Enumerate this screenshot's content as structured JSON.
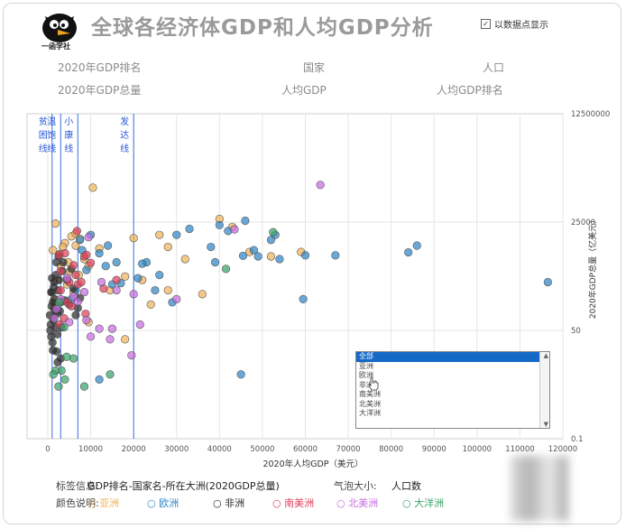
{
  "title": "全球各经济体GDP和人均GDP分析",
  "show_points_label": "以数据点显示",
  "show_points_checked": "✓",
  "logo_text": "一函学社",
  "info_labels": {
    "rank": "2020年GDP排名",
    "country": "国家",
    "population": "人口",
    "total": "2020年GDP总量",
    "per_capita": "人均GDP",
    "per_capita_rank": "人均GDP排名"
  },
  "footer": {
    "tag_label": "标签信息:",
    "tag_value": "GDP排名-国家名-所在大洲(2020GDP总量)",
    "bubble_label": "气泡大小:",
    "bubble_value": "人口数",
    "color_label": "颜色说明:"
  },
  "dropdown": {
    "options": [
      "全部",
      "亚洲",
      "欧洲",
      "非洲",
      "南美洲",
      "北美洲",
      "大洋洲"
    ],
    "selected": 0
  },
  "colors": {
    "亚洲": "#f0b35a",
    "欧洲": "#2f86c6",
    "非洲": "#2b2b2b",
    "南美洲": "#e0405c",
    "北美洲": "#c86ce0",
    "大洋洲": "#3aa36a"
  },
  "chart_data": {
    "type": "scatter",
    "xlabel": "2020年人均GDP（美元）",
    "ylabel": "2020年GDP总量（亿美元）",
    "x_ticks": [
      "0",
      "10000",
      "20000",
      "30000",
      "40000",
      "50000",
      "60000",
      "70000",
      "80000",
      "90000",
      "100000",
      "110000",
      "120000"
    ],
    "xlim": [
      0,
      120000
    ],
    "y_scale": "log",
    "y_ticks": [
      0.1,
      50,
      25000,
      12500000
    ],
    "y_tick_labels": [
      "0.1",
      "50",
      "25000",
      "12500000"
    ],
    "ylim": [
      0.1,
      12500000
    ],
    "lines": [
      {
        "label": "贫困线",
        "x": 1000
      },
      {
        "label": "温饱线",
        "x": 3000
      },
      {
        "label": "小康线",
        "x": 7000
      },
      {
        "label": "发达线",
        "x": 20000
      }
    ],
    "series": [
      {
        "name": "亚洲",
        "points": [
          [
            10500,
            180000
          ],
          [
            1800,
            23000
          ],
          [
            4000,
            7500
          ],
          [
            5500,
            11000
          ],
          [
            6500,
            13000
          ],
          [
            7500,
            9500
          ],
          [
            3500,
            6000
          ],
          [
            2800,
            4000
          ],
          [
            8500,
            3000
          ],
          [
            12000,
            5500
          ],
          [
            9500,
            2000
          ],
          [
            20000,
            10000
          ],
          [
            26000,
            12000
          ],
          [
            28000,
            6000
          ],
          [
            32000,
            3000
          ],
          [
            40000,
            30000
          ],
          [
            43000,
            19000
          ],
          [
            47000,
            4500
          ],
          [
            52000,
            3500
          ],
          [
            59000,
            4500
          ],
          [
            22000,
            900
          ],
          [
            28000,
            500
          ],
          [
            36000,
            400
          ],
          [
            18000,
            1100
          ],
          [
            1200,
            5000
          ],
          [
            2200,
            900
          ],
          [
            3000,
            2000
          ],
          [
            4500,
            700
          ],
          [
            6000,
            450
          ],
          [
            9500,
            80
          ],
          [
            1500,
            300
          ],
          [
            14500,
            500
          ],
          [
            18000,
            30
          ],
          [
            24000,
            220
          ],
          [
            6500,
            6500
          ],
          [
            4800,
            2500
          ],
          [
            5200,
            1500
          ],
          [
            7200,
            1200
          ]
        ]
      },
      {
        "name": "欧洲",
        "points": [
          [
            116500,
            800
          ],
          [
            86000,
            6500
          ],
          [
            84000,
            4400
          ],
          [
            67000,
            3700
          ],
          [
            60000,
            3700
          ],
          [
            59500,
            300
          ],
          [
            46000,
            27000
          ],
          [
            45500,
            3600
          ],
          [
            40000,
            21000
          ],
          [
            42000,
            15000
          ],
          [
            38000,
            6000
          ],
          [
            48000,
            5000
          ],
          [
            49000,
            3500
          ],
          [
            52000,
            9000
          ],
          [
            53000,
            12000
          ],
          [
            54000,
            3000
          ],
          [
            39000,
            2500
          ],
          [
            33000,
            17000
          ],
          [
            30000,
            12000
          ],
          [
            23000,
            2500
          ],
          [
            26000,
            1200
          ],
          [
            25000,
            500
          ],
          [
            22000,
            2300
          ],
          [
            16000,
            2500
          ],
          [
            15000,
            700
          ],
          [
            17000,
            750
          ],
          [
            14000,
            6500
          ],
          [
            12000,
            4200
          ],
          [
            10000,
            12000
          ],
          [
            9000,
            1600
          ],
          [
            8000,
            5000
          ],
          [
            7500,
            9000
          ],
          [
            13500,
            2000
          ],
          [
            21000,
            1000
          ],
          [
            6500,
            500
          ],
          [
            5500,
            300
          ],
          [
            45000,
            4
          ],
          [
            12000,
            3
          ],
          [
            29000,
            250
          ]
        ]
      },
      {
        "name": "非洲",
        "points": [
          [
            500,
            120
          ],
          [
            600,
            50
          ],
          [
            700,
            70
          ],
          [
            800,
            35
          ],
          [
            900,
            200
          ],
          [
            1000,
            450
          ],
          [
            1100,
            25
          ],
          [
            1200,
            16
          ],
          [
            1300,
            90
          ],
          [
            1400,
            600
          ],
          [
            1500,
            800
          ],
          [
            1600,
            300
          ],
          [
            1700,
            150
          ],
          [
            1800,
            60
          ],
          [
            1900,
            1200
          ],
          [
            2000,
            2500
          ],
          [
            2100,
            130
          ],
          [
            2200,
            40
          ],
          [
            2300,
            8
          ],
          [
            2400,
            500
          ],
          [
            2500,
            3500
          ],
          [
            2600,
            900
          ],
          [
            2800,
            150
          ],
          [
            3000,
            250
          ],
          [
            3200,
            60
          ],
          [
            3400,
            1500
          ],
          [
            3600,
            2500
          ],
          [
            4000,
            280
          ],
          [
            4500,
            900
          ],
          [
            5000,
            220
          ],
          [
            5500,
            1700
          ],
          [
            6000,
            550
          ],
          [
            6500,
            120
          ],
          [
            7000,
            180
          ],
          [
            7500,
            320
          ],
          [
            1000,
            1000
          ],
          [
            1500,
            180
          ],
          [
            2000,
            15
          ],
          [
            3000,
            10
          ],
          [
            800,
            450
          ],
          [
            1200,
            250
          ]
        ]
      },
      {
        "name": "南美洲",
        "points": [
          [
            6800,
            15000
          ],
          [
            8500,
            3500
          ],
          [
            9000,
            3800
          ],
          [
            10000,
            2400
          ],
          [
            6000,
            2100
          ],
          [
            5000,
            800
          ],
          [
            3000,
            500
          ],
          [
            3800,
            100
          ],
          [
            4500,
            250
          ],
          [
            2600,
            3800
          ],
          [
            13000,
            550
          ],
          [
            16000,
            900
          ],
          [
            6500,
            1200
          ],
          [
            7000,
            700
          ],
          [
            5500,
            200
          ],
          [
            2800,
            70
          ],
          [
            4000,
            4200
          ],
          [
            7800,
            800
          ],
          [
            8800,
            130
          ],
          [
            3000,
            1500
          ]
        ]
      },
      {
        "name": "北美洲",
        "points": [
          [
            63500,
            210000
          ],
          [
            43500,
            16500
          ],
          [
            9500,
            10500
          ],
          [
            4500,
            1000
          ],
          [
            6000,
            350
          ],
          [
            7000,
            260
          ],
          [
            9000,
            90
          ],
          [
            10000,
            35
          ],
          [
            12000,
            55
          ],
          [
            15000,
            55
          ],
          [
            19500,
            12
          ],
          [
            21500,
            70
          ],
          [
            16000,
            500
          ],
          [
            12500,
            800
          ],
          [
            3000,
            300
          ],
          [
            2000,
            170
          ],
          [
            1500,
            100
          ],
          [
            8500,
            450
          ],
          [
            5000,
            80
          ],
          [
            30000,
            300
          ],
          [
            20000,
            400
          ],
          [
            14500,
            30
          ]
        ]
      },
      {
        "name": "大洋洲",
        "points": [
          [
            52500,
            14000
          ],
          [
            41500,
            1700
          ],
          [
            2700,
            250
          ],
          [
            3800,
            60
          ],
          [
            4400,
            11
          ],
          [
            3200,
            5
          ],
          [
            1800,
            5
          ],
          [
            1300,
            4
          ],
          [
            6000,
            10
          ],
          [
            8500,
            2
          ],
          [
            14500,
            4
          ],
          [
            2500,
            2
          ],
          [
            4000,
            3
          ]
        ]
      }
    ]
  }
}
